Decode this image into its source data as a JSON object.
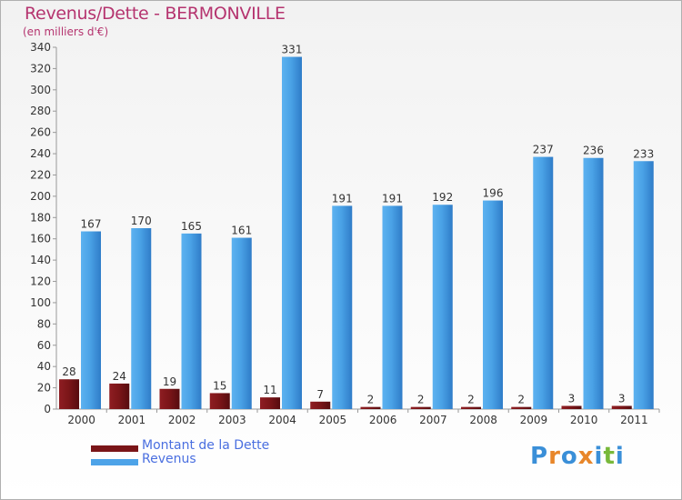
{
  "chart_data": {
    "type": "bar",
    "title": "Revenus/Dette - BERMONVILLE",
    "subtitle": "(en milliers d'€)",
    "categories": [
      "2000",
      "2001",
      "2002",
      "2003",
      "2004",
      "2005",
      "2006",
      "2007",
      "2008",
      "2009",
      "2010",
      "2011"
    ],
    "series": [
      {
        "name": "Montant de la Dette",
        "color": "#7a1518",
        "values": [
          28,
          24,
          19,
          15,
          11,
          7,
          2,
          2,
          2,
          2,
          3,
          3
        ]
      },
      {
        "name": "Revenus",
        "color": "#4da3e8",
        "values": [
          167,
          170,
          165,
          161,
          331,
          191,
          191,
          192,
          196,
          237,
          236,
          233
        ]
      }
    ],
    "ylim": [
      0,
      340
    ],
    "yticks": [
      0,
      20,
      40,
      60,
      80,
      100,
      120,
      140,
      160,
      180,
      200,
      220,
      240,
      260,
      280,
      300,
      320,
      340
    ],
    "grid": false,
    "legend_position": "bottom-left"
  },
  "logo": {
    "letters": [
      "P",
      "r",
      "o",
      "x",
      "i",
      "t",
      "i"
    ],
    "colors": [
      "#3a8fd8",
      "#e8862a",
      "#3a8fd8",
      "#e8862a",
      "#3a8fd8",
      "#78b83a",
      "#3a8fd8"
    ]
  }
}
